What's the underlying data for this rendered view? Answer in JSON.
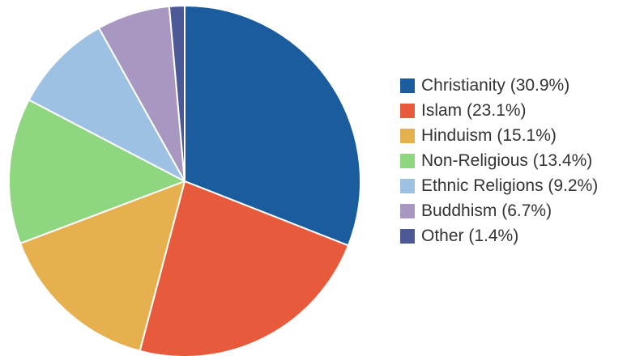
{
  "chart_data": {
    "type": "pie",
    "title": "",
    "start_angle_deg": 0,
    "direction": "clockwise",
    "slices": [
      {
        "label": "Christianity (30.9%)",
        "value": 30.9,
        "color": "#1a5c9e"
      },
      {
        "label": "Islam (23.1%)",
        "value": 23.1,
        "color": "#e75b3c"
      },
      {
        "label": "Hinduism (15.1%)",
        "value": 15.1,
        "color": "#e7b04f"
      },
      {
        "label": "Non-Religious (13.4%)",
        "value": 13.4,
        "color": "#8ed67f"
      },
      {
        "label": "Ethnic Religions (9.2%)",
        "value": 9.2,
        "color": "#9cc1e2"
      },
      {
        "label": "Buddhism (6.7%)",
        "value": 6.7,
        "color": "#a898c1"
      },
      {
        "label": "Other (1.4%)",
        "value": 1.4,
        "color": "#4d5996"
      }
    ],
    "legend_position": "right"
  }
}
